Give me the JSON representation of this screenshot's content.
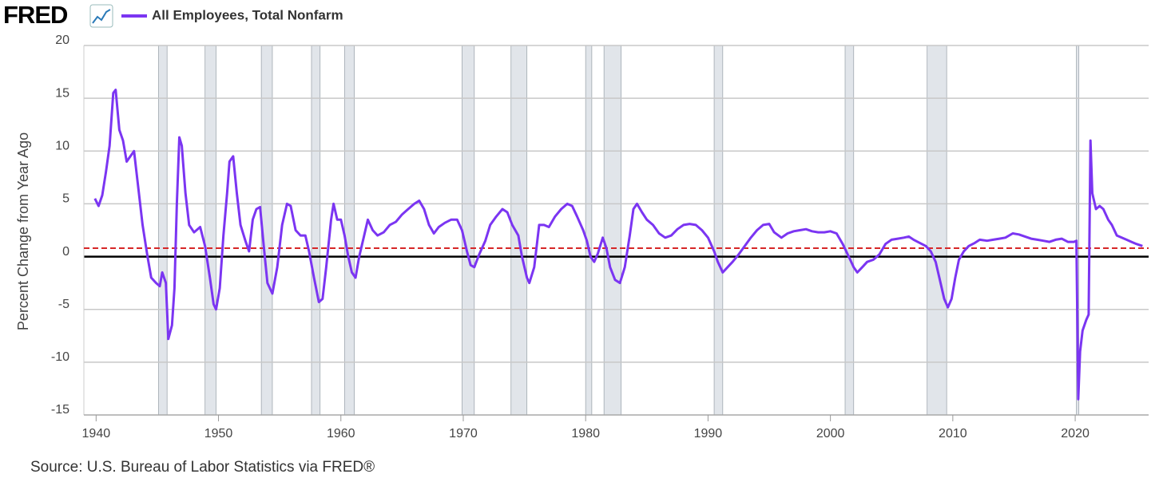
{
  "logo": "FRED",
  "chart_data": {
    "type": "line",
    "y_label": "Percent Change from Year Ago",
    "source": "Source: U.S. Bureau of Labor Statistics via FRED®",
    "xlim": [
      1939,
      2026
    ],
    "ylim": [
      -15,
      20
    ],
    "xticks": [
      1940,
      1950,
      1960,
      1970,
      1980,
      1990,
      2000,
      2010,
      2020
    ],
    "yticks": [
      -15,
      -10,
      -5,
      0,
      5,
      10,
      15,
      20
    ],
    "grid": true,
    "zero_line_color": "#000000",
    "reference_lines": [
      {
        "value": 0.8,
        "color": "#d62728",
        "dashed": true
      }
    ],
    "recessions": [
      [
        1945.1,
        1945.8
      ],
      [
        1948.9,
        1949.8
      ],
      [
        1953.5,
        1954.4
      ],
      [
        1957.6,
        1958.3
      ],
      [
        1960.3,
        1961.1
      ],
      [
        1969.9,
        1970.9
      ],
      [
        1973.9,
        1975.2
      ],
      [
        1980.0,
        1980.5
      ],
      [
        1981.5,
        1982.9
      ],
      [
        1990.5,
        1991.2
      ],
      [
        2001.2,
        2001.9
      ],
      [
        2007.9,
        2009.5
      ],
      [
        2020.1,
        2020.3
      ]
    ],
    "recession_color": "#e1e5ea",
    "x": [
      1939.9,
      1940.2,
      1940.5,
      1940.8,
      1941.1,
      1941.4,
      1941.6,
      1941.9,
      1942.2,
      1942.5,
      1942.8,
      1943.1,
      1943.4,
      1943.8,
      1944.2,
      1944.5,
      1944.9,
      1945.2,
      1945.4,
      1945.7,
      1945.9,
      1946.2,
      1946.4,
      1946.6,
      1946.8,
      1947.0,
      1947.3,
      1947.6,
      1948.0,
      1948.5,
      1948.9,
      1949.3,
      1949.6,
      1949.8,
      1950.1,
      1950.4,
      1950.7,
      1950.9,
      1951.2,
      1951.5,
      1951.8,
      1952.2,
      1952.5,
      1952.8,
      1953.1,
      1953.4,
      1953.7,
      1954.0,
      1954.4,
      1954.8,
      1955.2,
      1955.6,
      1955.9,
      1956.3,
      1956.7,
      1957.1,
      1957.4,
      1957.8,
      1958.2,
      1958.5,
      1958.8,
      1959.2,
      1959.4,
      1959.7,
      1960.0,
      1960.3,
      1960.6,
      1960.9,
      1961.2,
      1961.5,
      1961.9,
      1962.2,
      1962.6,
      1963.0,
      1963.5,
      1964.0,
      1964.5,
      1965.0,
      1965.5,
      1966.0,
      1966.4,
      1966.8,
      1967.2,
      1967.6,
      1968.0,
      1968.5,
      1969.0,
      1969.5,
      1969.9,
      1970.3,
      1970.6,
      1970.9,
      1971.3,
      1971.8,
      1972.2,
      1972.7,
      1973.2,
      1973.6,
      1974.0,
      1974.5,
      1974.8,
      1975.2,
      1975.4,
      1975.8,
      1976.2,
      1976.6,
      1977.0,
      1977.5,
      1978.0,
      1978.5,
      1978.9,
      1979.3,
      1979.8,
      1980.1,
      1980.4,
      1980.7,
      1981.0,
      1981.4,
      1981.7,
      1982.0,
      1982.4,
      1982.8,
      1983.2,
      1983.6,
      1983.9,
      1984.2,
      1984.6,
      1985.0,
      1985.5,
      1986.0,
      1986.5,
      1987.0,
      1987.5,
      1988.0,
      1988.5,
      1989.0,
      1989.5,
      1990.0,
      1990.5,
      1990.8,
      1991.2,
      1991.6,
      1992.0,
      1992.5,
      1993.0,
      1993.5,
      1994.0,
      1994.5,
      1995.0,
      1995.4,
      1996.0,
      1996.5,
      1997.0,
      1997.5,
      1998.0,
      1998.5,
      1999.0,
      1999.5,
      2000.0,
      2000.5,
      2001.0,
      2001.5,
      2001.9,
      2002.2,
      2002.6,
      2003.0,
      2003.5,
      2004.0,
      2004.5,
      2005.0,
      2005.5,
      2006.0,
      2006.4,
      2006.8,
      2007.3,
      2007.8,
      2008.2,
      2008.6,
      2008.9,
      2009.3,
      2009.6,
      2009.9,
      2010.2,
      2010.5,
      2010.9,
      2011.3,
      2011.8,
      2012.2,
      2012.8,
      2013.3,
      2013.8,
      2014.3,
      2014.9,
      2015.4,
      2015.9,
      2016.4,
      2016.9,
      2017.4,
      2017.9,
      2018.4,
      2018.9,
      2019.4,
      2019.9,
      2020.1,
      2020.25,
      2020.4,
      2020.6,
      2020.9,
      2021.1,
      2021.25,
      2021.4,
      2021.7,
      2022.0,
      2022.3,
      2022.7,
      2023.0,
      2023.4,
      2023.8,
      2024.2,
      2024.6,
      2025.0,
      2025.5
    ],
    "series": [
      {
        "name": "All Employees, Total Nonfarm",
        "color": "#7b35f2",
        "values": [
          5.5,
          4.8,
          5.8,
          8,
          10.5,
          15.5,
          15.8,
          12,
          11,
          9,
          9.5,
          10,
          7,
          3,
          0,
          -2,
          -2.5,
          -2.8,
          -1.5,
          -2.5,
          -7.8,
          -6.5,
          -3,
          5,
          11.3,
          10.5,
          6,
          3,
          2.3,
          2.8,
          1.0,
          -2,
          -4.5,
          -5,
          -3,
          2,
          6,
          9,
          9.5,
          6,
          3,
          1.5,
          0.5,
          3.5,
          4.5,
          4.7,
          1,
          -2.5,
          -3.5,
          -1,
          3,
          5,
          4.8,
          2.5,
          2,
          2,
          0.5,
          -2,
          -4.3,
          -4,
          -1,
          3.5,
          5,
          3.5,
          3.5,
          2,
          0,
          -1.5,
          -2,
          0,
          2,
          3.5,
          2.5,
          2,
          2.3,
          3,
          3.3,
          4,
          4.5,
          5,
          5.3,
          4.5,
          3,
          2.2,
          2.8,
          3.2,
          3.5,
          3.5,
          2.5,
          0.5,
          -0.8,
          -1,
          0.2,
          1.5,
          3,
          3.8,
          4.5,
          4.2,
          3,
          2,
          0,
          -2,
          -2.5,
          -1,
          3,
          3,
          2.8,
          3.8,
          4.5,
          5,
          4.8,
          3.8,
          2.5,
          1.5,
          0,
          -0.5,
          0.3,
          1.8,
          0.8,
          -1,
          -2.2,
          -2.5,
          -1,
          2,
          4.5,
          5,
          4.2,
          3.5,
          3,
          2.2,
          1.8,
          2,
          2.6,
          3,
          3.1,
          3,
          2.5,
          1.8,
          0.5,
          -0.5,
          -1.5,
          -1,
          -0.5,
          0.2,
          1,
          1.8,
          2.5,
          3,
          3.1,
          2.3,
          1.8,
          2.2,
          2.4,
          2.5,
          2.6,
          2.4,
          2.3,
          2.3,
          2.4,
          2.2,
          1.2,
          0,
          -1,
          -1.5,
          -1,
          -0.5,
          -0.3,
          0.2,
          1.2,
          1.6,
          1.7,
          1.8,
          1.9,
          1.6,
          1.3,
          1,
          0.5,
          -0.5,
          -2,
          -4,
          -4.8,
          -4,
          -2,
          -0.3,
          0.5,
          1,
          1.3,
          1.6,
          1.5,
          1.6,
          1.7,
          1.8,
          2.2,
          2.1,
          1.9,
          1.7,
          1.6,
          1.5,
          1.4,
          1.6,
          1.7,
          1.4,
          1.4,
          1.5,
          -13.5,
          -9,
          -7,
          -6,
          -5.5,
          11,
          6,
          4.5,
          4.8,
          4.5,
          3.5,
          3,
          2,
          1.8,
          1.6,
          1.4,
          1.2,
          1.0
        ]
      }
    ]
  }
}
